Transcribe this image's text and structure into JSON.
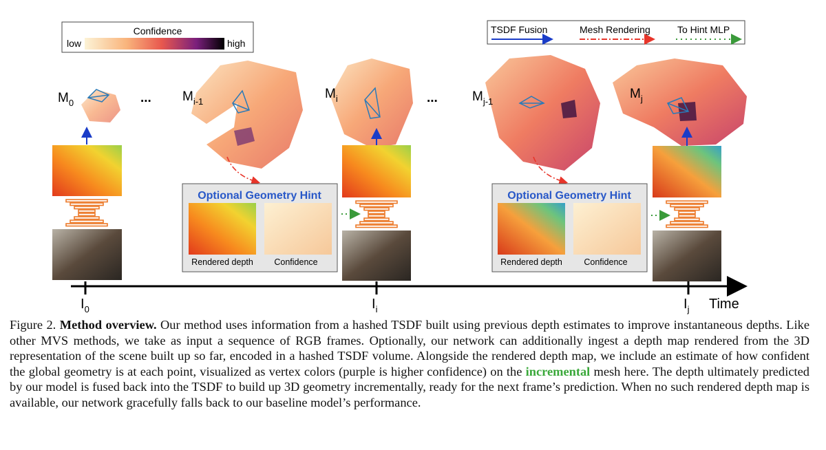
{
  "legend_confidence": {
    "title": "Confidence",
    "low": "low",
    "high": "high"
  },
  "legend_arrows": [
    "TSDF Fusion",
    "Mesh Rendering",
    "To Hint MLP"
  ],
  "meshes": [
    {
      "base": "M",
      "sub": "0"
    },
    {
      "base": "M",
      "sub": "i-1"
    },
    {
      "base": "M",
      "sub": "i"
    },
    {
      "base": "M",
      "sub": "j-1"
    },
    {
      "base": "M",
      "sub": "j"
    }
  ],
  "ellipses": [
    "...",
    "..."
  ],
  "hint_panels": [
    {
      "title": "Optional Geometry Hint",
      "images": [
        "Rendered depth",
        "Confidence"
      ]
    },
    {
      "title": "Optional Geometry Hint",
      "images": [
        "Rendered depth",
        "Confidence"
      ]
    }
  ],
  "frames": [
    {
      "base": "I",
      "sub": "0"
    },
    {
      "base": "I",
      "sub": "i"
    },
    {
      "base": "I",
      "sub": "j"
    }
  ],
  "time_label": "Time",
  "caption": {
    "label": "Figure 2.",
    "heading": "Method overview.",
    "text_before": "Our method uses information from a hashed TSDF built using previous depth estimates to improve instantaneous depths. Like other MVS methods, we take as input a sequence of RGB frames. Optionally, our network can additionally ingest a depth map rendered from the 3D representation of the scene built up so far, encoded in a hashed TSDF volume. Alongside the rendered depth map, we include an estimate of how confident the global geometry is at each point, visualized as vertex colors (purple is higher confidence) on the",
    "highlight": "incremental",
    "text_after": "mesh here. The depth ultimately predicted by our model is fused back into the TSDF to build up 3D geometry incrementally, ready for the next frame’s prediction. When no such rendered depth map is available, our network gracefully falls back to our baseline model’s performance."
  }
}
